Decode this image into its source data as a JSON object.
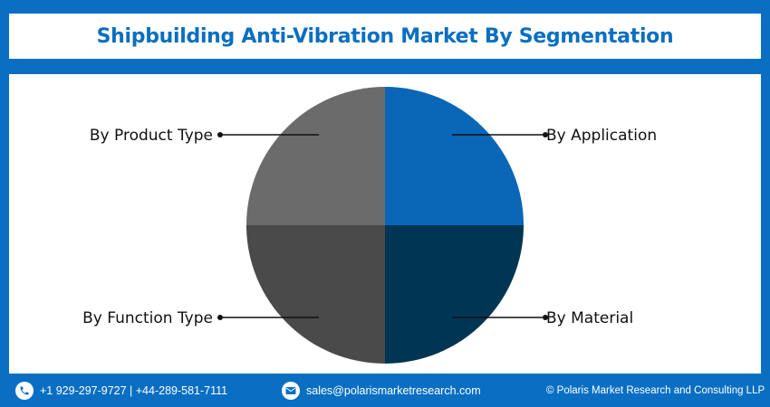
{
  "header": {
    "title": "Shipbuilding Anti-Vibration Market By Segmentation"
  },
  "chart_data": {
    "type": "pie",
    "slices": [
      {
        "label": "By Application",
        "value": 25,
        "color": "#0a66b7"
      },
      {
        "label": "By Material",
        "value": 25,
        "color": "#003553"
      },
      {
        "label": "By Function Type",
        "value": 25,
        "color": "#4a4a4a"
      },
      {
        "label": "By Product Type",
        "value": 25,
        "color": "#6b6b6b"
      }
    ],
    "legend": "callout-labels"
  },
  "footer": {
    "phone": "+1 929-297-9727 | +44-289-581-7111",
    "email": "sales@polarismarketresearch.com",
    "copyright": "© Polaris Market Research and Consulting LLP",
    "phone_icon": "phone-icon",
    "email_icon": "email-icon"
  },
  "colors": {
    "brand_blue": "#0a6fc2",
    "panel": "#ffffff"
  }
}
